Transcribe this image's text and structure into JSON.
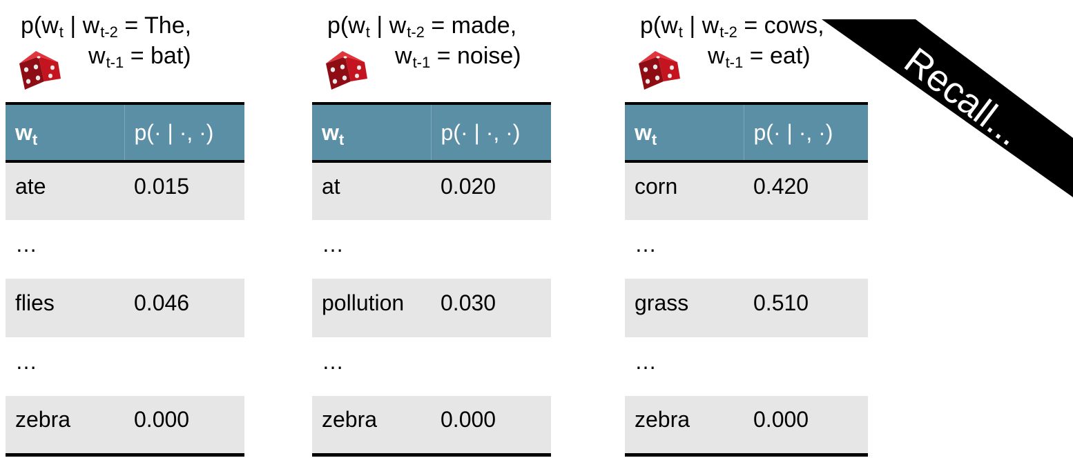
{
  "ribbon": {
    "text": "Recall..."
  },
  "table_header": {
    "col_word_main": "w",
    "col_word_sub": "t",
    "col_prob": "p(· | ·, ·)"
  },
  "panels": [
    {
      "title": {
        "p_open": "p(w",
        "w_sub": "t",
        "bar": " | w",
        "prev2_sub": "t-2",
        "prev2_value": " = The,",
        "prev1_main": "w",
        "prev1_sub": "t-1",
        "prev1_value": " = bat)"
      },
      "rows": [
        {
          "word": "ate",
          "prob": "0.015"
        },
        {
          "word": "…",
          "prob": ""
        },
        {
          "word": "flies",
          "prob": "0.046"
        },
        {
          "word": "…",
          "prob": ""
        },
        {
          "word": "zebra",
          "prob": "0.000"
        }
      ]
    },
    {
      "title": {
        "p_open": "p(w",
        "w_sub": "t",
        "bar": " | w",
        "prev2_sub": "t-2",
        "prev2_value": " = made,",
        "prev1_main": "w",
        "prev1_sub": "t-1",
        "prev1_value": " = noise)"
      },
      "rows": [
        {
          "word": "at",
          "prob": "0.020"
        },
        {
          "word": "…",
          "prob": ""
        },
        {
          "word": "pollution",
          "prob": "0.030"
        },
        {
          "word": "…",
          "prob": ""
        },
        {
          "word": "zebra",
          "prob": "0.000"
        }
      ]
    },
    {
      "title": {
        "p_open": "p(w",
        "w_sub": "t",
        "bar": " | w",
        "prev2_sub": "t-2",
        "prev2_value": " = cows,",
        "prev1_main": "w",
        "prev1_sub": "t-1",
        "prev1_value": " = eat)"
      },
      "rows": [
        {
          "word": "corn",
          "prob": "0.420"
        },
        {
          "word": "…",
          "prob": ""
        },
        {
          "word": "grass",
          "prob": "0.510"
        },
        {
          "word": "…",
          "prob": ""
        },
        {
          "word": "zebra",
          "prob": "0.000"
        }
      ]
    }
  ],
  "icons": {
    "die": "red-die-icon"
  },
  "colors": {
    "header_bg": "#5b8fa6",
    "row_shade": "#e6e6e6",
    "ribbon": "#000000",
    "die": "#b3121c"
  }
}
